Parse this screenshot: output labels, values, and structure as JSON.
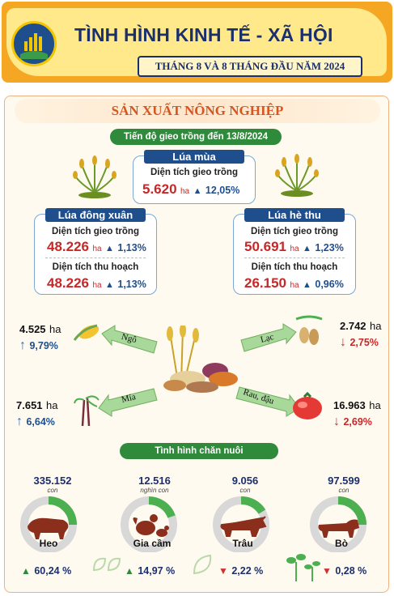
{
  "header": {
    "title": "TÌNH HÌNH KINH TẾ - XÃ HỘI",
    "subtitle": "THÁNG 8 VÀ 8 THÁNG ĐẦU NĂM 2024"
  },
  "section": {
    "title": "SẢN XUẤT NÔNG NGHIỆP",
    "progress_label": "Tiến độ gieo trồng đến 13/8/2024"
  },
  "lua_mua": {
    "name": "Lúa mùa",
    "area_label": "Diện tích gieo trồng",
    "area_value": "5.620",
    "unit": "ha",
    "area_pct": "12,05%"
  },
  "lua_dong_xuan": {
    "name": "Lúa đông xuân",
    "plant_label": "Diện tích gieo trồng",
    "plant_value": "48.226",
    "plant_pct": "1,13%",
    "harvest_label": "Diện tích thu hoạch",
    "harvest_value": "48.226",
    "harvest_pct": "1,13%",
    "unit": "ha"
  },
  "lua_he_thu": {
    "name": "Lúa hè thu",
    "plant_label": "Diện tích gieo trồng",
    "plant_value": "50.691",
    "plant_pct": "1,23%",
    "harvest_label": "Diện tích thu hoạch",
    "harvest_value": "26.150",
    "harvest_pct": "0,96%",
    "unit": "ha"
  },
  "crops": {
    "ngo": {
      "name": "Ngô",
      "value": "4.525",
      "unit": "ha",
      "pct": "9,79%",
      "direction": "up"
    },
    "mia": {
      "name": "Mía",
      "value": "7.651",
      "unit": "ha",
      "pct": "6,64%",
      "direction": "up"
    },
    "lac": {
      "name": "Lạc",
      "value": "2.742",
      "unit": "ha",
      "pct": "2,75%",
      "direction": "down"
    },
    "rau_dau": {
      "name": "Rau, đậu",
      "value": "16.963",
      "unit": "ha",
      "pct": "2,69%",
      "direction": "down"
    }
  },
  "livestock": {
    "title": "Tình hình chăn nuôi",
    "items": [
      {
        "name": "Heo",
        "value": "335.152",
        "unit": "con",
        "pct": "60,24 %",
        "direction": "up"
      },
      {
        "name": "Gia cầm",
        "value": "12.516",
        "unit": "nghìn con",
        "pct": "14,97 %",
        "direction": "up"
      },
      {
        "name": "Trâu",
        "value": "9.056",
        "unit": "con",
        "pct": "2,22 %",
        "direction": "down"
      },
      {
        "name": "Bò",
        "value": "97.599",
        "unit": "con",
        "pct": "0,28 %",
        "direction": "down"
      }
    ]
  },
  "colors": {
    "up": "#2f8a3b",
    "down": "#d32f2f",
    "navy": "#1f4e8c",
    "accent": "#f5a623"
  }
}
